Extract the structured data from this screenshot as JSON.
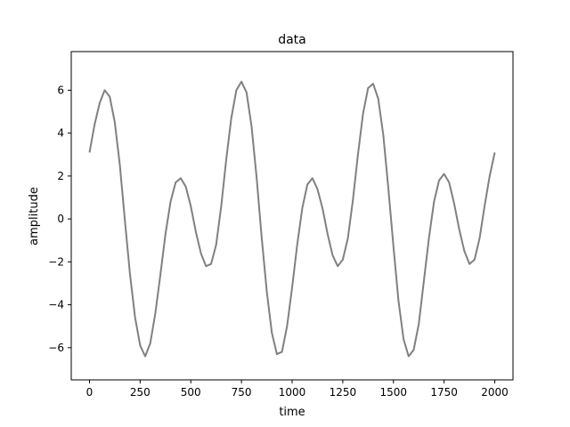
{
  "chart_data": {
    "type": "line",
    "title": "data",
    "xlabel": "time",
    "ylabel": "amplitude",
    "xlim": [
      -90,
      2090
    ],
    "ylim": [
      -7.5,
      7.8
    ],
    "xticks": [
      0,
      250,
      500,
      750,
      1000,
      1250,
      1500,
      1750,
      2000
    ],
    "yticks": [
      -6,
      -4,
      -2,
      0,
      2,
      4,
      6
    ],
    "xtick_labels": [
      "0",
      "250",
      "500",
      "750",
      "1000",
      "1250",
      "1500",
      "1750",
      "2000"
    ],
    "ytick_labels": [
      "−6",
      "−4",
      "−2",
      "0",
      "2",
      "4",
      "6"
    ],
    "grid": false,
    "line_color": "#808080",
    "series": [
      {
        "x": [
          0,
          25,
          50,
          75,
          100,
          125,
          150,
          175,
          200,
          225,
          250,
          275,
          300,
          325,
          350,
          375,
          400,
          425,
          450,
          475,
          500,
          525,
          550,
          575,
          600,
          625,
          650,
          675,
          700,
          725,
          750,
          775,
          800,
          825,
          850,
          875,
          900,
          925,
          950,
          975,
          1000,
          1025,
          1050,
          1075,
          1100,
          1125,
          1150,
          1175,
          1200,
          1225,
          1250,
          1275,
          1300,
          1325,
          1350,
          1375,
          1400,
          1425,
          1450,
          1475,
          1500,
          1525,
          1550,
          1575,
          1600,
          1625,
          1650,
          1675,
          1700,
          1725,
          1750,
          1775,
          1800,
          1825,
          1850,
          1875,
          1900,
          1925,
          1950,
          1975,
          2000
        ],
        "values": [
          3.1,
          4.4,
          5.4,
          6.0,
          5.7,
          4.5,
          2.5,
          -0.1,
          -2.6,
          -4.6,
          -5.9,
          -6.4,
          -5.8,
          -4.4,
          -2.6,
          -0.7,
          0.8,
          1.7,
          1.9,
          1.5,
          0.6,
          -0.6,
          -1.6,
          -2.2,
          -2.1,
          -1.2,
          0.6,
          2.8,
          4.7,
          6.0,
          6.4,
          5.9,
          4.3,
          1.9,
          -0.9,
          -3.4,
          -5.3,
          -6.3,
          -6.2,
          -5.0,
          -3.2,
          -1.2,
          0.5,
          1.6,
          1.9,
          1.4,
          0.5,
          -0.7,
          -1.7,
          -2.2,
          -1.9,
          -0.9,
          0.9,
          3.0,
          4.9,
          6.1,
          6.3,
          5.6,
          3.9,
          1.4,
          -1.3,
          -3.8,
          -5.6,
          -6.4,
          -6.1,
          -4.9,
          -2.9,
          -0.9,
          0.8,
          1.8,
          2.1,
          1.7,
          0.7,
          -0.5,
          -1.5,
          -2.1,
          -1.9,
          -0.9,
          0.6,
          2.0,
          3.1
        ]
      }
    ]
  }
}
